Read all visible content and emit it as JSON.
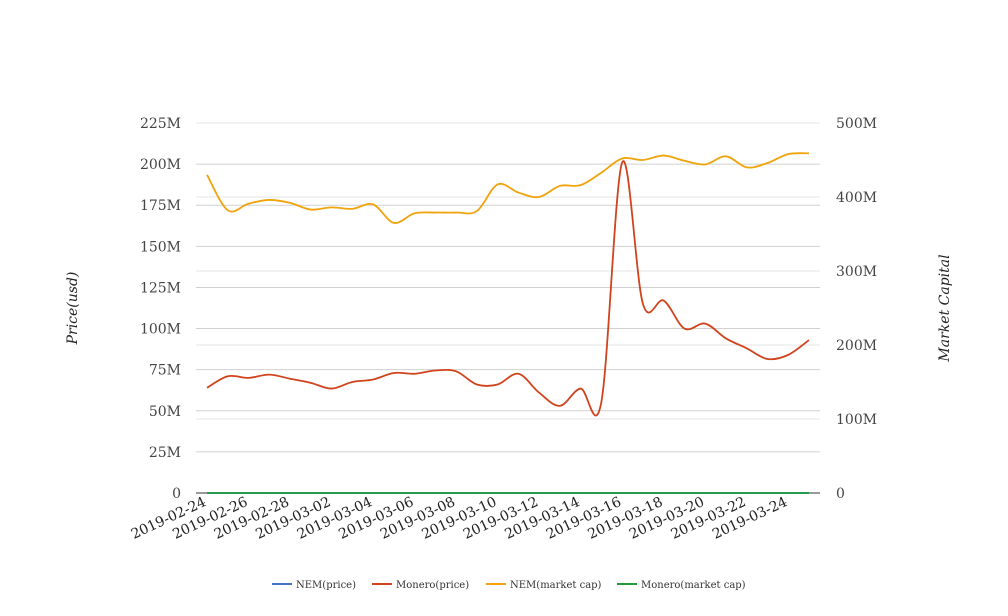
{
  "chart_data": {
    "type": "line",
    "title": "",
    "xlabel": "",
    "ylabel": "Price(usd)",
    "y2label": "Market Capital",
    "x_ticks": [
      "2019-02-24",
      "2019-02-26",
      "2019-02-28",
      "2019-03-02",
      "2019-03-04",
      "2019-03-06",
      "2019-03-08",
      "2019-03-10",
      "2019-03-12",
      "2019-03-14",
      "2019-03-16",
      "2019-03-18",
      "2019-03-20",
      "2019-03-22",
      "2019-03-24"
    ],
    "x": [
      "2019-02-24",
      "2019-02-25",
      "2019-02-26",
      "2019-02-27",
      "2019-02-28",
      "2019-03-01",
      "2019-03-02",
      "2019-03-03",
      "2019-03-04",
      "2019-03-05",
      "2019-03-06",
      "2019-03-07",
      "2019-03-08",
      "2019-03-09",
      "2019-03-10",
      "2019-03-11",
      "2019-03-12",
      "2019-03-13",
      "2019-03-14",
      "2019-03-15",
      "2019-03-16",
      "2019-03-17",
      "2019-03-18",
      "2019-03-19",
      "2019-03-20",
      "2019-03-21",
      "2019-03-22",
      "2019-03-23",
      "2019-03-24",
      "2019-03-25"
    ],
    "ylim": [
      0,
      225000000
    ],
    "y_ticks": [
      "0",
      "25M",
      "50M",
      "75M",
      "100M",
      "125M",
      "150M",
      "175M",
      "200M",
      "225M"
    ],
    "y2lim": [
      0,
      500000000
    ],
    "y2_ticks": [
      "0",
      "100M",
      "200M",
      "300M",
      "400M",
      "500M"
    ],
    "grid": true,
    "legend_position": "bottom",
    "series": [
      {
        "name": "NEM(price)",
        "color": "#4472c4",
        "axis": "left",
        "values": [
          0.05,
          0.05,
          0.05,
          0.05,
          0.05,
          0.05,
          0.05,
          0.05,
          0.05,
          0.05,
          0.05,
          0.05,
          0.05,
          0.05,
          0.05,
          0.05,
          0.05,
          0.05,
          0.05,
          0.05,
          0.05,
          0.05,
          0.05,
          0.05,
          0.05,
          0.05,
          0.05,
          0.05,
          0.05,
          0.05
        ]
      },
      {
        "name": "Monero(price)",
        "color": "#d0431c",
        "axis": "left",
        "values": [
          64000000,
          71000000,
          70000000,
          72000000,
          69500000,
          67000000,
          63500000,
          67500000,
          69000000,
          73000000,
          72500000,
          74500000,
          74000000,
          66000000,
          66000000,
          72500000,
          61000000,
          53000000,
          63500000,
          55500000,
          201000000,
          115000000,
          117000000,
          100000000,
          103000000,
          94000000,
          88000000,
          81500000,
          84000000,
          93000000
        ]
      },
      {
        "name": "NEM(market cap)",
        "color": "#f0a30a",
        "axis": "right",
        "values": [
          430000000,
          382000000,
          391000000,
          396000000,
          392000000,
          383000000,
          386000000,
          384000000,
          390000000,
          365000000,
          378000000,
          379000000,
          379000000,
          381000000,
          417000000,
          406000000,
          400000000,
          415000000,
          416000000,
          433000000,
          452000000,
          450000000,
          456000000,
          449000000,
          444000000,
          455000000,
          440000000,
          446000000,
          458000000,
          459000000
        ]
      },
      {
        "name": "Monero(market cap)",
        "color": "#1e9b3a",
        "axis": "right",
        "values": [
          800,
          800,
          800,
          800,
          800,
          800,
          800,
          800,
          800,
          800,
          800,
          800,
          800,
          800,
          800,
          800,
          800,
          800,
          800,
          800,
          800,
          800,
          800,
          800,
          800,
          800,
          800,
          800,
          800,
          800
        ]
      }
    ]
  }
}
